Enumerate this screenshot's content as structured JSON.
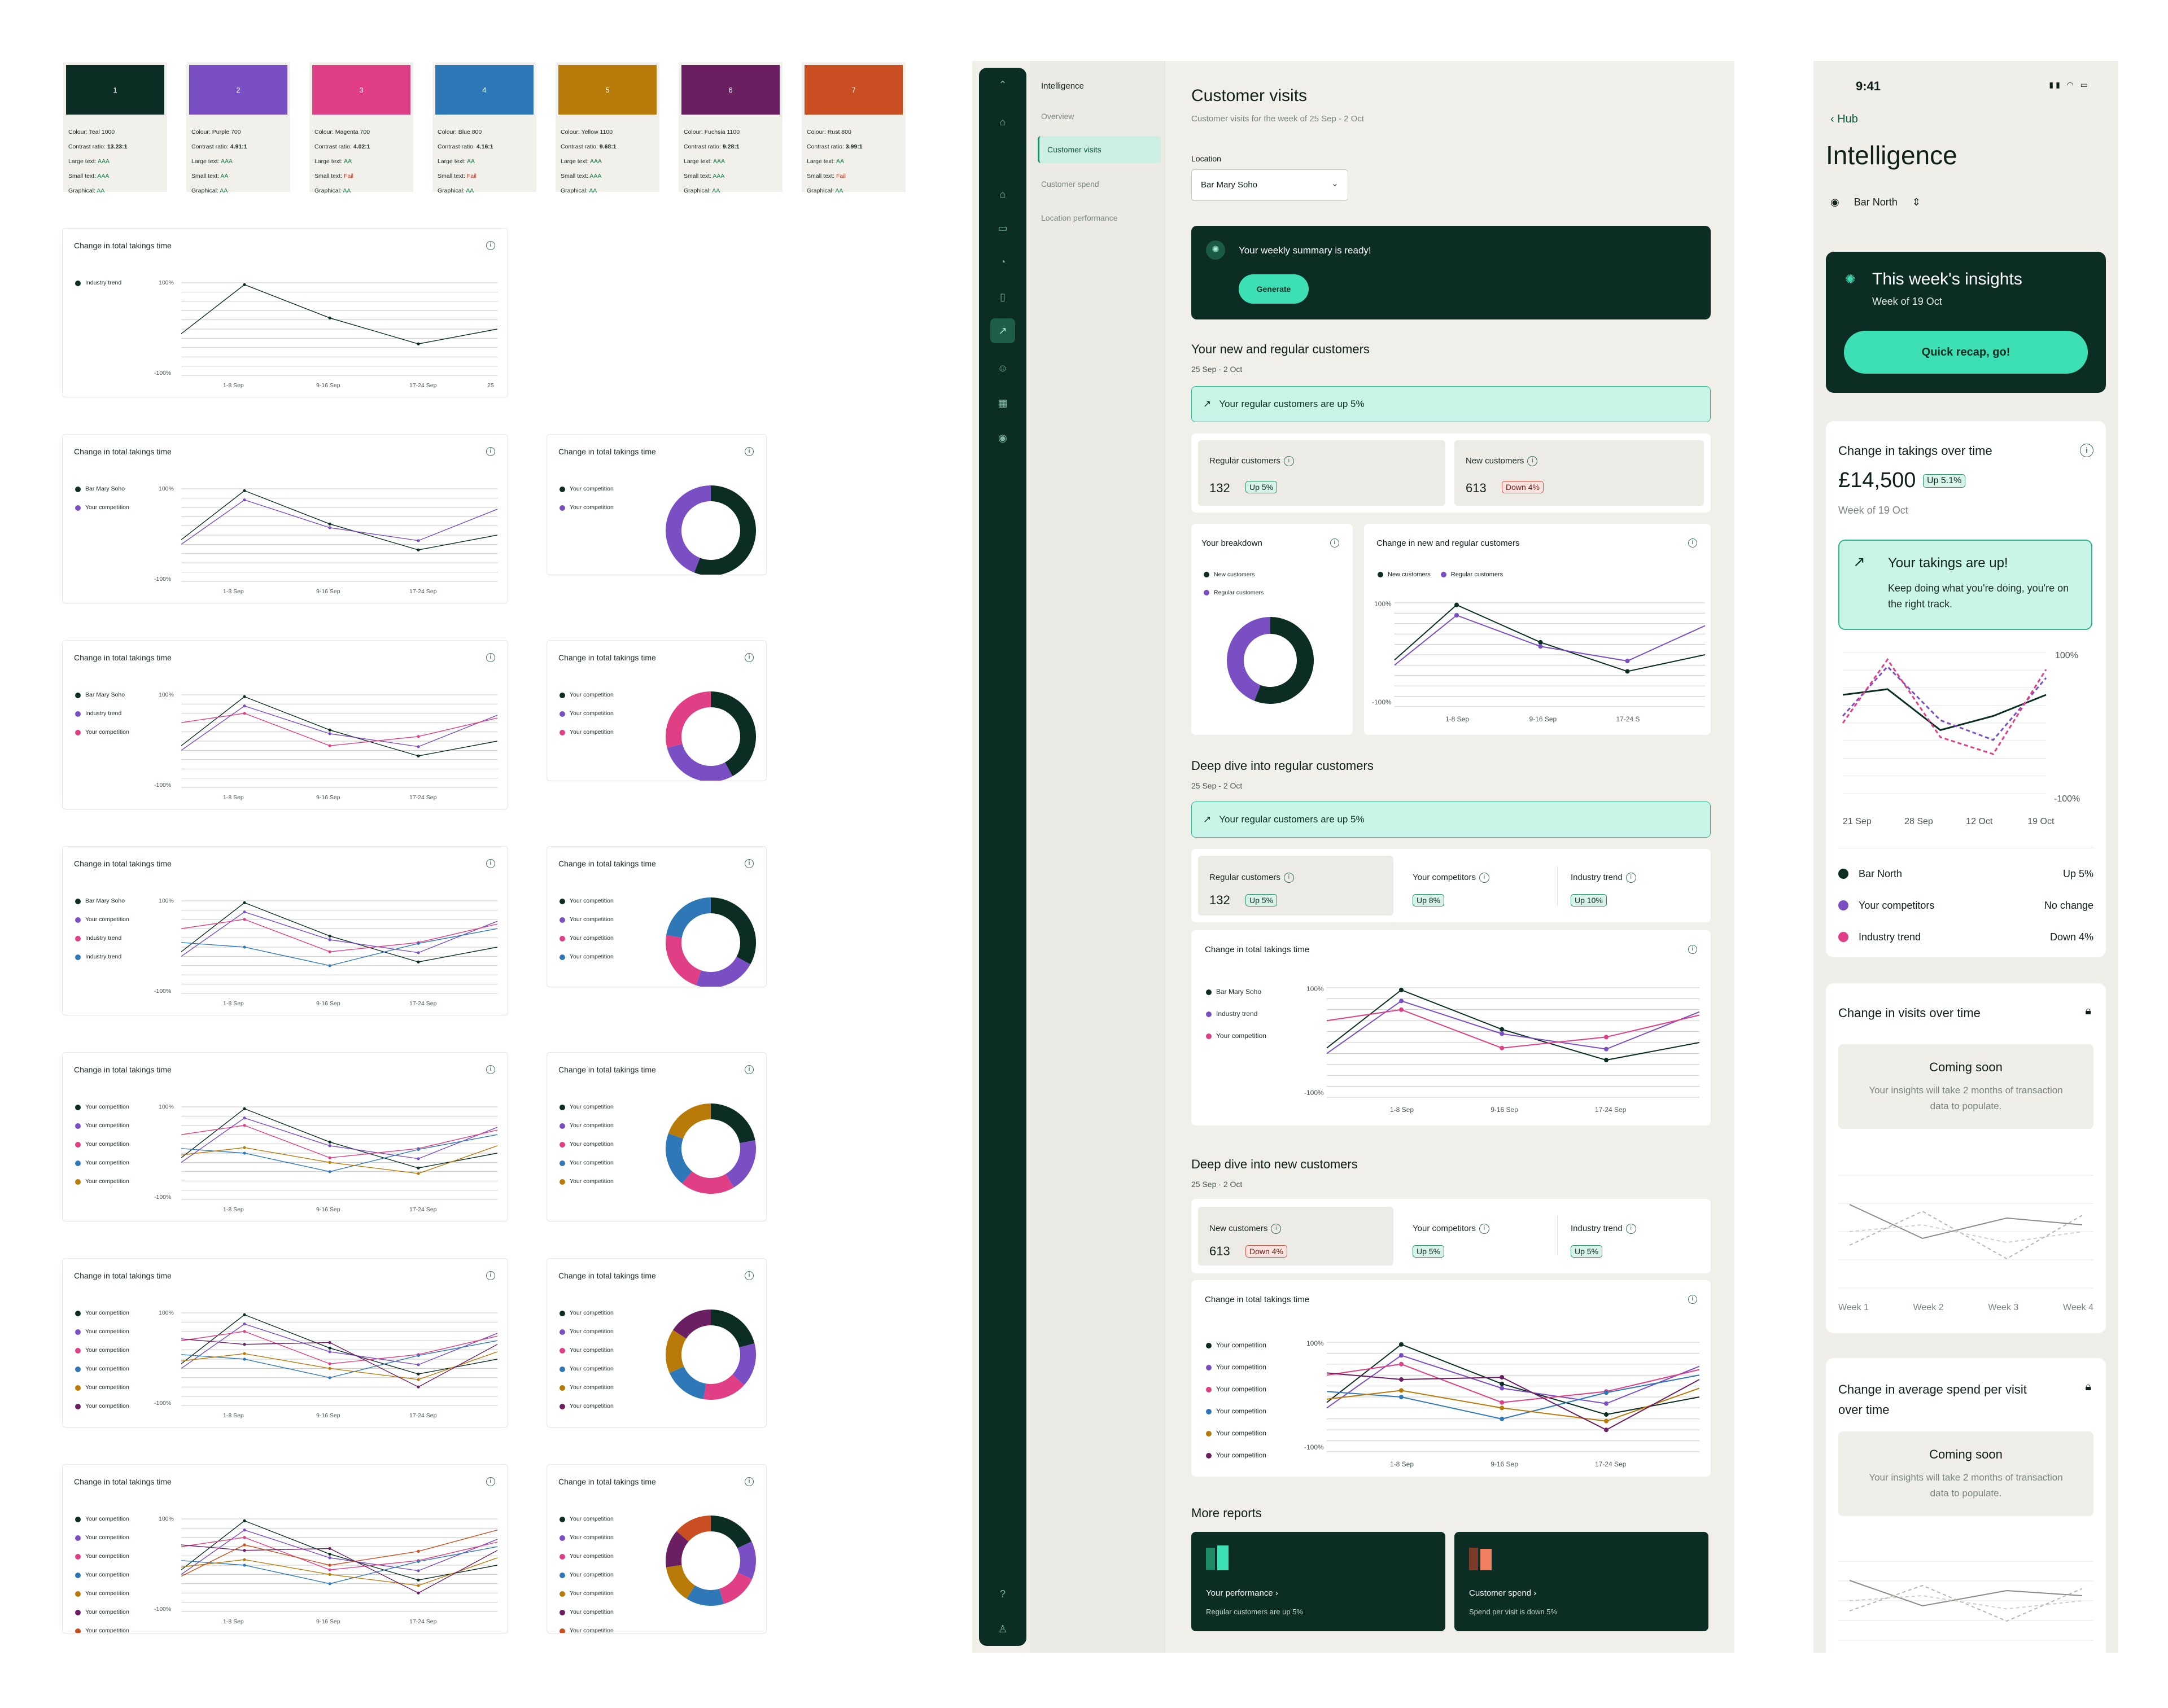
{
  "swatches": [
    {
      "num": "1",
      "hex": "#0b2d24",
      "colour": "Colour: Teal 1000",
      "contrast": "13.23:1",
      "large": "AAA",
      "small": "AAA",
      "graphical": "AA"
    },
    {
      "num": "2",
      "hex": "#7b4fc4",
      "colour": "Colour: Purple 700",
      "contrast": "4.91:1",
      "large": "AAA",
      "small": "AA",
      "graphical": "AA"
    },
    {
      "num": "3",
      "hex": "#e03f86",
      "colour": "Colour: Magenta 700",
      "contrast": "4.02:1",
      "large": "AA",
      "small": "Fail",
      "graphical": "AA"
    },
    {
      "num": "4",
      "hex": "#2f78b7",
      "colour": "Colour: Blue 800",
      "contrast": "4.16:1",
      "large": "AA",
      "small": "Fail",
      "graphical": "AA"
    },
    {
      "num": "5",
      "hex": "#b87a08",
      "colour": "Colour: Yellow 1100",
      "contrast": "9.68:1",
      "large": "AAA",
      "small": "AAA",
      "graphical": "AA"
    },
    {
      "num": "6",
      "hex": "#6a1f63",
      "colour": "Colour: Fuchsia 1100",
      "contrast": "9.28:1",
      "large": "AAA",
      "small": "AAA",
      "graphical": "AA"
    },
    {
      "num": "7",
      "hex": "#c94f22",
      "colour": "Colour: Rust 800",
      "contrast": "3.99:1",
      "large": "AA",
      "small": "Fail",
      "graphical": "AA"
    }
  ],
  "swatch_labels": {
    "contrast": "Contrast ratio: ",
    "large": "Large text: ",
    "small": "Small text: ",
    "graphical": "Graphical: "
  },
  "chart_title": "Change in total takings time",
  "axis": {
    "top": "100%",
    "bottom": "-100%",
    "x": [
      "1-8 Sep",
      "9-16 Sep",
      "17-24 Sep",
      "25"
    ]
  },
  "rows": [
    {
      "legend": [
        "Industry trend"
      ],
      "donut": false
    },
    {
      "legend": [
        "Bar Mary Soho",
        "Your competition"
      ],
      "donut_legend": [
        "Your competition",
        "Your competition"
      ]
    },
    {
      "legend": [
        "Bar Mary Soho",
        "Industry trend",
        "Your competition"
      ],
      "donut_legend": [
        "Your competition",
        "Your competition",
        "Your competition"
      ]
    },
    {
      "legend": [
        "Bar Mary Soho",
        "Your competition",
        "Industry trend",
        "Industry trend"
      ],
      "donut_legend": [
        "Your competition",
        "Your competition",
        "Your competition",
        "Your competition"
      ]
    },
    {
      "legend": [
        "Your competition",
        "Your competition",
        "Your competition",
        "Your competition",
        "Your competition"
      ],
      "donut_legend": [
        "Your competition",
        "Your competition",
        "Your competition",
        "Your competition",
        "Your competition"
      ]
    },
    {
      "legend": [
        "Your competition",
        "Your competition",
        "Your competition",
        "Your competition",
        "Your competition",
        "Your competition"
      ],
      "donut_legend": [
        "Your competition",
        "Your competition",
        "Your competition",
        "Your competition",
        "Your competition",
        "Your competition"
      ]
    },
    {
      "legend": [
        "Your competition",
        "Your competition",
        "Your competition",
        "Your competition",
        "Your competition",
        "Your competition",
        "Your competition"
      ],
      "donut_legend": [
        "Your competition",
        "Your competition",
        "Your competition",
        "Your competition",
        "Your competition",
        "Your competition",
        "Your competition"
      ]
    }
  ],
  "desktop": {
    "subnav_title": "Intelligence",
    "subnav": [
      "Overview",
      "Customer visits",
      "Customer spend",
      "Location performance"
    ],
    "title": "Customer visits",
    "subtitle": "Customer visits for the week of 25 Sep - 2 Oct",
    "location_label": "Location",
    "location_value": "Bar Mary Soho",
    "summary": "Your weekly summary is ready!",
    "generate": "Generate",
    "sec1": "Your new and regular customers",
    "sec1_sub": "25 Sep - 2 Oct",
    "banner1": "Your regular customers are up 5%",
    "regular_label": "Regular customers",
    "regular_value": "132",
    "regular_badge": "Up 5%",
    "new_label": "New customers",
    "new_value": "613",
    "new_badge": "Down 4%",
    "breakdown_title": "Your breakdown",
    "breakdown_legend": [
      "New customers",
      "Regular customers"
    ],
    "change_title": "Change in new and regular customers",
    "change_legend": [
      "New customers",
      "Regular customers"
    ],
    "change_x": [
      "1-8 Sep",
      "9-16 Sep",
      "17-24 S"
    ],
    "sec2": "Deep dive into regular customers",
    "sec2_sub": "25 Sep - 2 Oct",
    "banner2": "Your regular customers are up 5%",
    "comp_label": "Your competitors",
    "comp_badge": "Up 8%",
    "ind_label": "Industry trend",
    "ind_badge": "Up 10%",
    "total_title": "Change in total takings time",
    "total_legend": [
      "Bar Mary Soho",
      "Industry trend",
      "Your competition"
    ],
    "sec3": "Deep dive into new customers",
    "sec3_sub": "25 Sep - 2 Oct",
    "comp_badge2": "Up 5%",
    "ind_badge2": "Up 5%",
    "total2_legend": [
      "Your competition",
      "Your competition",
      "Your competition",
      "Your competition",
      "Your competition",
      "Your competition"
    ],
    "more_reports": "More reports",
    "report1_title": "Your performance",
    "report1_sub": "Regular customers are up 5%",
    "report2_title": "Customer spend",
    "report2_sub": "Spend per visit is down 5%"
  },
  "mobile": {
    "time": "9:41",
    "back": "Hub",
    "title": "Intelligence",
    "location": "Bar North",
    "insights_title": "This week's insights",
    "insights_sub": "Week of 19 Oct",
    "recap": "Quick recap, go!",
    "takings_title": "Change in takings over time",
    "takings_value": "£14,500",
    "takings_badge": "Up 5.1%",
    "takings_week": "Week of 19 Oct",
    "callout_title": "Your takings are up!",
    "callout_body": "Keep doing what you're doing, you're on the right track.",
    "axis_top": "100%",
    "axis_bottom": "-100%",
    "x": [
      "21 Sep",
      "28 Sep",
      "12 Oct",
      "19 Oct"
    ],
    "rows": [
      {
        "name": "Bar North",
        "value": "Up 5%"
      },
      {
        "name": "Your competitors",
        "value": "No change"
      },
      {
        "name": "Industry trend",
        "value": "Down 4%"
      }
    ],
    "visits_title": "Change in visits over time",
    "soon": "Coming soon",
    "soon_body": "Your insights will take 2 months of transaction data to populate.",
    "weeks": [
      "Week 1",
      "Week 2",
      "Week 3",
      "Week 4"
    ],
    "spend_title": "Change in average spend per visit over time"
  }
}
